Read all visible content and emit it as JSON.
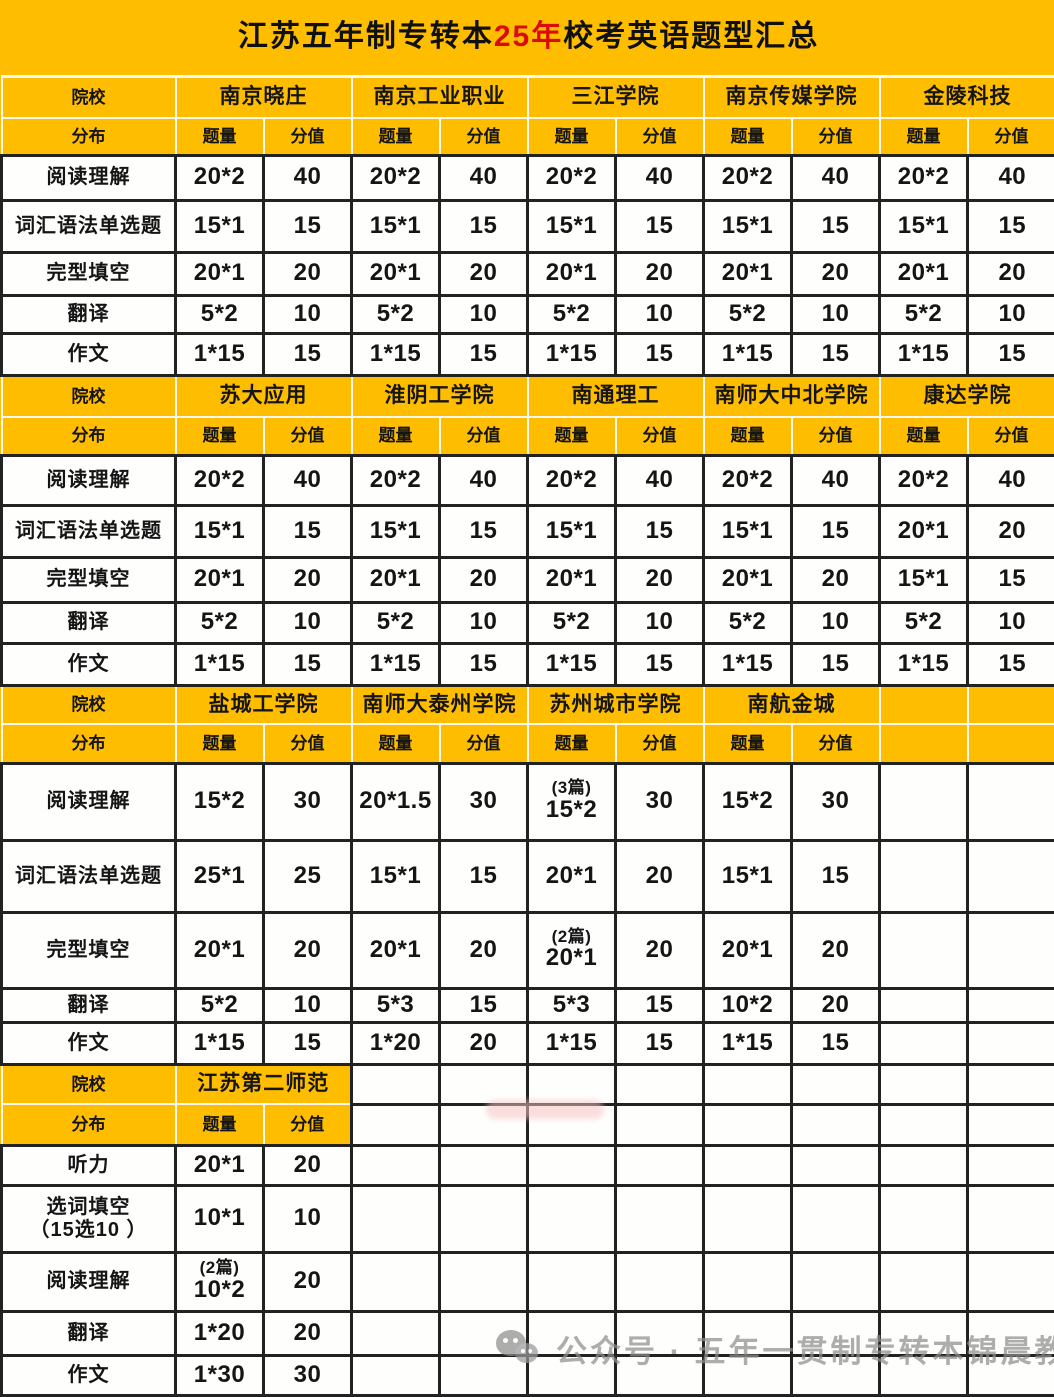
{
  "title": {
    "prefix": "江苏五年制专转本",
    "highlight": "25年",
    "suffix": "校考英语题型汇总",
    "highlight_color": "#DB0B0B"
  },
  "labels": {
    "school": "院校",
    "dist": "分布",
    "qty": "题量",
    "score": "分值"
  },
  "colors": {
    "header_yellow": "#FFBD00",
    "cell_white": "#FEFEFD",
    "grid_border": "#222222",
    "title_red": "#DB0B0B",
    "watermark_gray": "#8E8E8E"
  },
  "watermark": {
    "icon": "wechat-icon",
    "text": "公众号 · 五年一贯制专转本锦晨教育"
  },
  "sections": [
    {
      "schools": [
        "南京晓庄",
        "南京工业职业",
        "三江学院",
        "南京传媒学院",
        "金陵科技"
      ],
      "rows": [
        {
          "label": "阅读理解",
          "cells": [
            {
              "q": "20*2",
              "s": "40"
            },
            {
              "q": "20*2",
              "s": "40"
            },
            {
              "q": "20*2",
              "s": "40"
            },
            {
              "q": "20*2",
              "s": "40"
            },
            {
              "q": "20*2",
              "s": "40"
            }
          ]
        },
        {
          "label": "词汇语法单选题",
          "cells": [
            {
              "q": "15*1",
              "s": "15"
            },
            {
              "q": "15*1",
              "s": "15"
            },
            {
              "q": "15*1",
              "s": "15"
            },
            {
              "q": "15*1",
              "s": "15"
            },
            {
              "q": "15*1",
              "s": "15"
            }
          ]
        },
        {
          "label": "完型填空",
          "cells": [
            {
              "q": "20*1",
              "s": "20"
            },
            {
              "q": "20*1",
              "s": "20"
            },
            {
              "q": "20*1",
              "s": "20"
            },
            {
              "q": "20*1",
              "s": "20"
            },
            {
              "q": "20*1",
              "s": "20"
            }
          ]
        },
        {
          "label": "翻译",
          "cells": [
            {
              "q": "5*2",
              "s": "10"
            },
            {
              "q": "5*2",
              "s": "10"
            },
            {
              "q": "5*2",
              "s": "10"
            },
            {
              "q": "5*2",
              "s": "10"
            },
            {
              "q": "5*2",
              "s": "10"
            }
          ]
        },
        {
          "label": "作文",
          "cells": [
            {
              "q": "1*15",
              "s": "15"
            },
            {
              "q": "1*15",
              "s": "15"
            },
            {
              "q": "1*15",
              "s": "15"
            },
            {
              "q": "1*15",
              "s": "15"
            },
            {
              "q": "1*15",
              "s": "15"
            }
          ]
        }
      ]
    },
    {
      "schools": [
        "苏大应用",
        "淮阴工学院",
        "南通理工",
        "南师大中北学院",
        "康达学院"
      ],
      "rows": [
        {
          "label": "阅读理解",
          "cells": [
            {
              "q": "20*2",
              "s": "40"
            },
            {
              "q": "20*2",
              "s": "40"
            },
            {
              "q": "20*2",
              "s": "40"
            },
            {
              "q": "20*2",
              "s": "40"
            },
            {
              "q": "20*2",
              "s": "40"
            }
          ]
        },
        {
          "label": "词汇语法单选题",
          "cells": [
            {
              "q": "15*1",
              "s": "15"
            },
            {
              "q": "15*1",
              "s": "15"
            },
            {
              "q": "15*1",
              "s": "15"
            },
            {
              "q": "15*1",
              "s": "15"
            },
            {
              "q": "20*1",
              "s": "20"
            }
          ]
        },
        {
          "label": "完型填空",
          "cells": [
            {
              "q": "20*1",
              "s": "20"
            },
            {
              "q": "20*1",
              "s": "20"
            },
            {
              "q": "20*1",
              "s": "20"
            },
            {
              "q": "20*1",
              "s": "20"
            },
            {
              "q": "15*1",
              "s": "15"
            }
          ]
        },
        {
          "label": "翻译",
          "cells": [
            {
              "q": "5*2",
              "s": "10"
            },
            {
              "q": "5*2",
              "s": "10"
            },
            {
              "q": "5*2",
              "s": "10"
            },
            {
              "q": "5*2",
              "s": "10"
            },
            {
              "q": "5*2",
              "s": "10"
            }
          ]
        },
        {
          "label": "作文",
          "cells": [
            {
              "q": "1*15",
              "s": "15"
            },
            {
              "q": "1*15",
              "s": "15"
            },
            {
              "q": "1*15",
              "s": "15"
            },
            {
              "q": "1*15",
              "s": "15"
            },
            {
              "q": "1*15",
              "s": "15"
            }
          ]
        }
      ]
    },
    {
      "schools": [
        "盐城工学院",
        "南师大泰州学院",
        "苏州城市学院",
        "南航金城"
      ],
      "rows": [
        {
          "label": "阅读理解",
          "cells": [
            {
              "q": "15*2",
              "s": "30"
            },
            {
              "q": "20*1.5",
              "s": "30"
            },
            {
              "note": "(3篇)",
              "q": "15*2",
              "s": "30"
            },
            {
              "q": "15*2",
              "s": "30"
            }
          ]
        },
        {
          "label": "词汇语法单选题",
          "cells": [
            {
              "q": "25*1",
              "s": "25"
            },
            {
              "q": "15*1",
              "s": "15"
            },
            {
              "q": "20*1",
              "s": "20"
            },
            {
              "q": "15*1",
              "s": "15"
            }
          ]
        },
        {
          "label": "完型填空",
          "cells": [
            {
              "q": "20*1",
              "s": "20"
            },
            {
              "q": "20*1",
              "s": "20"
            },
            {
              "note": "(2篇)",
              "q": "20*1",
              "s": "20"
            },
            {
              "q": "20*1",
              "s": "20"
            }
          ]
        },
        {
          "label": "翻译",
          "cells": [
            {
              "q": "5*2",
              "s": "10"
            },
            {
              "q": "5*3",
              "s": "15"
            },
            {
              "q": "5*3",
              "s": "15"
            },
            {
              "q": "10*2",
              "s": "20"
            }
          ]
        },
        {
          "label": "作文",
          "cells": [
            {
              "q": "1*15",
              "s": "15"
            },
            {
              "q": "1*20",
              "s": "20"
            },
            {
              "q": "1*15",
              "s": "15"
            },
            {
              "q": "1*15",
              "s": "15"
            }
          ]
        }
      ]
    },
    {
      "schools": [
        "江苏第二师范"
      ],
      "rows": [
        {
          "label": "听力",
          "cells": [
            {
              "q": "20*1",
              "s": "20"
            }
          ]
        },
        {
          "label": "选词填空",
          "sublabel": "（15选10 ）",
          "cells": [
            {
              "q": "10*1",
              "s": "10"
            }
          ]
        },
        {
          "label": "阅读理解",
          "cells": [
            {
              "note": "(2篇)",
              "q": "10*2",
              "s": "20"
            }
          ]
        },
        {
          "label": "翻译",
          "cells": [
            {
              "q": "1*20",
              "s": "20"
            }
          ]
        },
        {
          "label": "作文",
          "cells": [
            {
              "q": "1*30",
              "s": "30"
            }
          ]
        }
      ]
    }
  ]
}
